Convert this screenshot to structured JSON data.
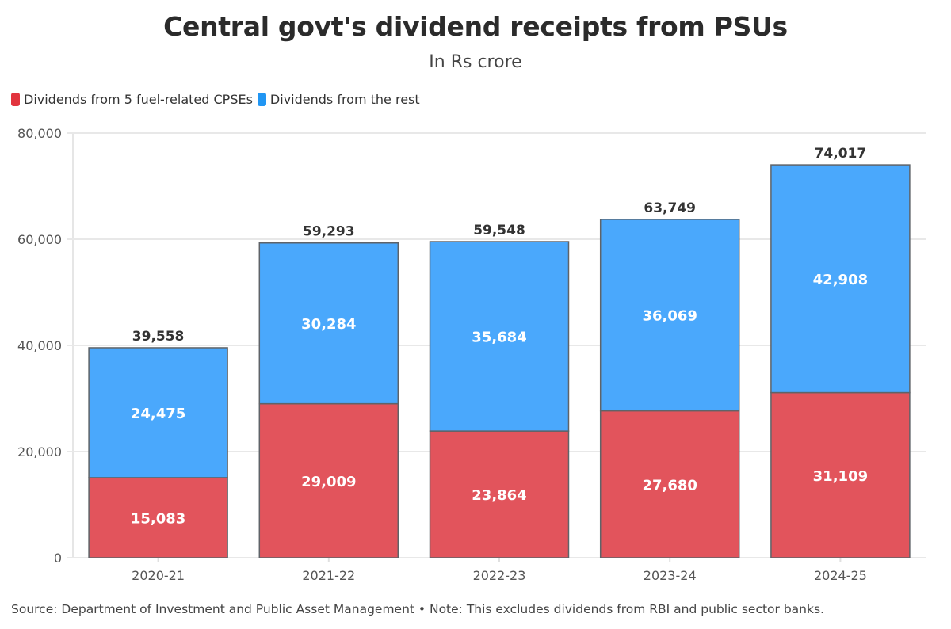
{
  "header": {
    "title": "Central govt's dividend receipts from PSUs",
    "subtitle": "In Rs crore"
  },
  "legend": [
    {
      "label": "Dividends from 5 fuel-related CPSEs",
      "color": "#e2343e"
    },
    {
      "label": "Dividends from the rest",
      "color": "#2196f3"
    }
  ],
  "footer": {
    "text": "Source: Department of Investment and Public Asset Management • Note: This excludes dividends from RBI and public sector banks."
  },
  "chart_data": {
    "type": "bar",
    "stacked": true,
    "title": "Central govt's dividend receipts from PSUs",
    "subtitle": "In Rs crore",
    "xlabel": "",
    "ylabel": "",
    "ylim": [
      0,
      80000
    ],
    "yticks": [
      0,
      20000,
      40000,
      60000,
      80000
    ],
    "ytick_labels": [
      "0",
      "20,000",
      "40,000",
      "60,000",
      "80,000"
    ],
    "grid": true,
    "legend_position": "top-left",
    "categories": [
      "2020-21",
      "2021-22",
      "2022-23",
      "2023-24",
      "2024-25"
    ],
    "series": [
      {
        "name": "Dividends from 5 fuel-related CPSEs",
        "color": "#e2545c",
        "values": [
          15083,
          29009,
          23864,
          27680,
          31109
        ],
        "labels": [
          "15,083",
          "29,009",
          "23,864",
          "27,680",
          "31,109"
        ]
      },
      {
        "name": "Dividends from the rest",
        "color": "#4aa8fc",
        "values": [
          24475,
          30284,
          35684,
          36069,
          42908
        ],
        "labels": [
          "24,475",
          "30,284",
          "35,684",
          "36,069",
          "42,908"
        ]
      }
    ],
    "totals": [
      39558,
      59293,
      59548,
      63749,
      74017
    ],
    "total_labels": [
      "39,558",
      "59,293",
      "59,548",
      "63,749",
      "74,017"
    ]
  }
}
